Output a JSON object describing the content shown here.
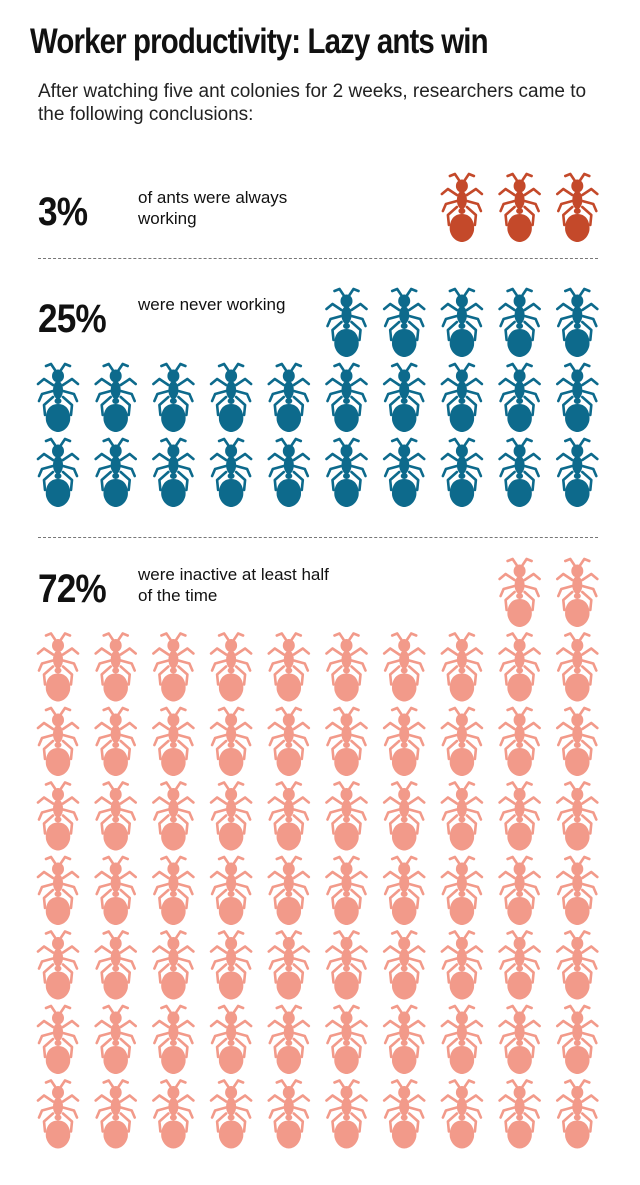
{
  "header": {
    "title": "Worker productivity: Lazy ants win",
    "subtitle": "After watching five ant colonies for 2 weeks, researchers came to the following conclusions:"
  },
  "chart_data": {
    "type": "pictogram",
    "unit": "each ant icon represents 1% of ants",
    "categories": [
      {
        "value_label": "3%",
        "value": 3,
        "description": "of ants were always working",
        "color": "#c4492a"
      },
      {
        "value_label": "25%",
        "value": 25,
        "description": "were never working",
        "color": "#0d6a8c"
      },
      {
        "value_label": "72%",
        "value": 72,
        "description": "were inactive at least half of the time",
        "color": "#f29a8a"
      }
    ]
  }
}
